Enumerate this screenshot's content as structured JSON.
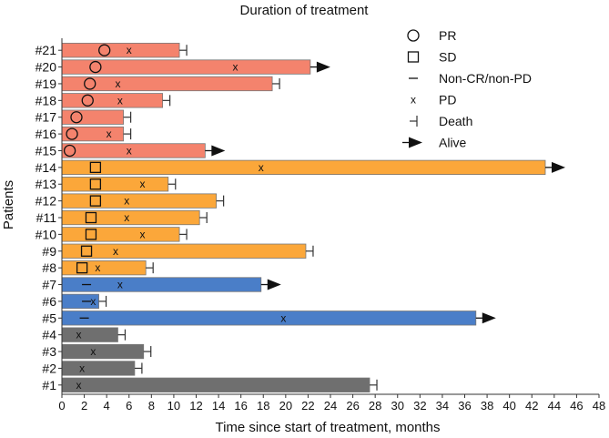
{
  "chart_data": {
    "type": "bar",
    "orientation": "horizontal",
    "title": "Duration of treatment",
    "xlabel": "Time since start of treatment, months",
    "ylabel": "Patients",
    "xlim": [
      0,
      48
    ],
    "x_ticks": [
      0,
      2,
      4,
      6,
      8,
      10,
      12,
      14,
      16,
      18,
      20,
      22,
      24,
      26,
      28,
      30,
      32,
      34,
      36,
      38,
      40,
      42,
      44,
      46,
      48
    ],
    "colors": {
      "salmon": "#f4836d",
      "orange": "#fba73a",
      "blue": "#4a7ec8",
      "gray": "#6f6f6f"
    },
    "legend": {
      "placement": "top-right",
      "entries": [
        {
          "symbol": "circle",
          "label": "PR"
        },
        {
          "symbol": "square",
          "label": "SD"
        },
        {
          "symbol": "dash",
          "label": "Non-CR/non-PD"
        },
        {
          "symbol": "x",
          "label": "PD"
        },
        {
          "symbol": "death",
          "label": "Death"
        },
        {
          "symbol": "arrow",
          "label": "Alive"
        }
      ]
    },
    "patients": [
      {
        "label": "#21",
        "duration": 10.5,
        "color": "#f4836d",
        "response": "PR",
        "response_month": 3.8,
        "pd": 6.0,
        "outcome": "death"
      },
      {
        "label": "#20",
        "duration": 22.2,
        "color": "#f4836d",
        "response": "PR",
        "response_month": 3.0,
        "pd": 15.5,
        "outcome": "alive"
      },
      {
        "label": "#19",
        "duration": 18.8,
        "color": "#f4836d",
        "response": "PR",
        "response_month": 2.5,
        "pd": 5.0,
        "outcome": "death"
      },
      {
        "label": "#18",
        "duration": 9.0,
        "color": "#f4836d",
        "response": "PR",
        "response_month": 2.3,
        "pd": 5.2,
        "outcome": "death"
      },
      {
        "label": "#17",
        "duration": 5.5,
        "color": "#f4836d",
        "response": "PR",
        "response_month": 1.3,
        "pd": null,
        "outcome": "death"
      },
      {
        "label": "#16",
        "duration": 5.5,
        "color": "#f4836d",
        "response": "PR",
        "response_month": 0.9,
        "pd": 4.2,
        "outcome": "death"
      },
      {
        "label": "#15",
        "duration": 12.8,
        "color": "#f4836d",
        "response": "PR",
        "response_month": 0.7,
        "pd": 6.0,
        "outcome": "alive"
      },
      {
        "label": "#14",
        "duration": 43.2,
        "color": "#fba73a",
        "response": "SD",
        "response_month": 3.0,
        "pd": 17.8,
        "outcome": "alive"
      },
      {
        "label": "#13",
        "duration": 9.5,
        "color": "#fba73a",
        "response": "SD",
        "response_month": 3.0,
        "pd": 7.2,
        "outcome": "death"
      },
      {
        "label": "#12",
        "duration": 13.8,
        "color": "#fba73a",
        "response": "SD",
        "response_month": 3.0,
        "pd": 5.8,
        "outcome": "death"
      },
      {
        "label": "#11",
        "duration": 12.3,
        "color": "#fba73a",
        "response": "SD",
        "response_month": 2.6,
        "pd": 5.8,
        "outcome": "death"
      },
      {
        "label": "#10",
        "duration": 10.5,
        "color": "#fba73a",
        "response": "SD",
        "response_month": 2.6,
        "pd": 7.2,
        "outcome": "death"
      },
      {
        "label": "#9",
        "duration": 21.8,
        "color": "#fba73a",
        "response": "SD",
        "response_month": 2.2,
        "pd": 4.8,
        "outcome": "death"
      },
      {
        "label": "#8",
        "duration": 7.5,
        "color": "#fba73a",
        "response": "SD",
        "response_month": 1.8,
        "pd": 3.2,
        "outcome": "death"
      },
      {
        "label": "#7",
        "duration": 17.8,
        "color": "#4a7ec8",
        "response": "Non-CR/non-PD",
        "response_month": 2.2,
        "pd": 5.2,
        "outcome": "alive"
      },
      {
        "label": "#6",
        "duration": 3.3,
        "color": "#4a7ec8",
        "response": "Non-CR/non-PD",
        "response_month": 2.2,
        "pd": 2.8,
        "outcome": "death"
      },
      {
        "label": "#5",
        "duration": 37.0,
        "color": "#4a7ec8",
        "response": "Non-CR/non-PD",
        "response_month": 2.0,
        "pd": 19.8,
        "outcome": "alive"
      },
      {
        "label": "#4",
        "duration": 5.0,
        "color": "#6f6f6f",
        "response": null,
        "response_month": null,
        "pd": 1.5,
        "outcome": "death"
      },
      {
        "label": "#3",
        "duration": 7.3,
        "color": "#6f6f6f",
        "response": null,
        "response_month": null,
        "pd": 2.8,
        "outcome": "death"
      },
      {
        "label": "#2",
        "duration": 6.5,
        "color": "#6f6f6f",
        "response": null,
        "response_month": null,
        "pd": 1.8,
        "outcome": "death"
      },
      {
        "label": "#1",
        "duration": 27.5,
        "color": "#6f6f6f",
        "response": null,
        "response_month": null,
        "pd": 1.5,
        "outcome": "death"
      }
    ]
  }
}
